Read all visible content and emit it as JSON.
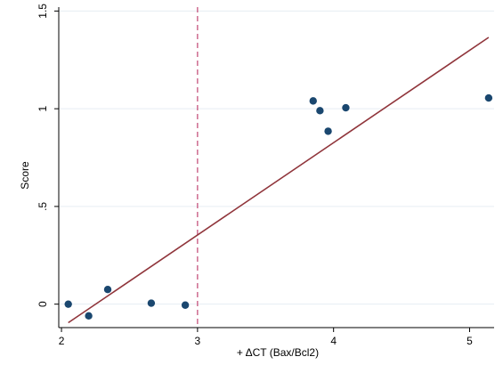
{
  "chart_data": {
    "type": "scatter",
    "xlabel": "+ ΔCT (Bax/Bcl2)",
    "ylabel": "Score",
    "xlim": [
      1.98,
      5.18
    ],
    "ylim": [
      -0.12,
      1.52
    ],
    "x_ticks": [
      2,
      3,
      4,
      5
    ],
    "x_tick_labels": [
      "2",
      "3",
      "4",
      "5"
    ],
    "y_ticks": [
      0,
      0.5,
      1,
      1.5
    ],
    "y_tick_labels": [
      "0",
      ".5",
      "1",
      "1.5"
    ],
    "grid": true,
    "series": [
      {
        "type": "scatter",
        "color": "#1a476f",
        "points": [
          {
            "x": 2.05,
            "y": 0.0
          },
          {
            "x": 2.2,
            "y": -0.06
          },
          {
            "x": 2.34,
            "y": 0.075
          },
          {
            "x": 2.66,
            "y": 0.005
          },
          {
            "x": 2.91,
            "y": -0.005
          },
          {
            "x": 3.85,
            "y": 1.04
          },
          {
            "x": 3.9,
            "y": 0.99
          },
          {
            "x": 3.96,
            "y": 0.885
          },
          {
            "x": 4.09,
            "y": 1.005
          },
          {
            "x": 5.14,
            "y": 1.055
          }
        ]
      },
      {
        "type": "line",
        "color": "#90353b",
        "points": [
          {
            "x": 2.05,
            "y": -0.095
          },
          {
            "x": 5.14,
            "y": 1.365
          }
        ]
      }
    ],
    "reference_lines": [
      {
        "axis": "x",
        "value": 3,
        "style": "dashed",
        "color": "#c5537d"
      }
    ]
  }
}
